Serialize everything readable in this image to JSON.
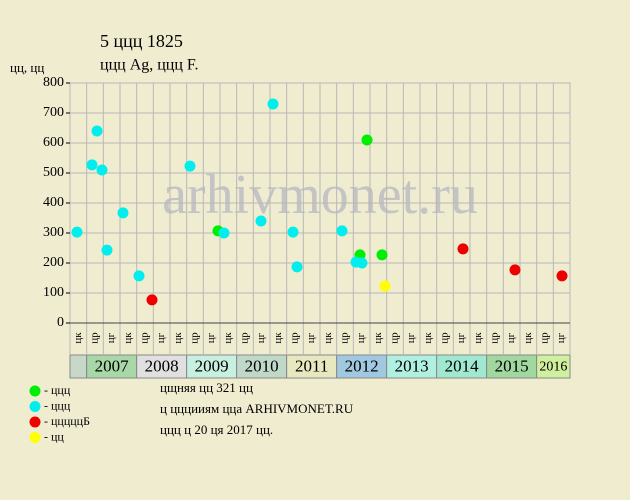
{
  "chart_data": {
    "type": "scatter",
    "title": "5 ццц 1825",
    "subtitle": "ццц Ag, ццц F.",
    "y_label": "цц, цц",
    "watermark": "arhivmonet.ru",
    "ylim": [
      0,
      800
    ],
    "yticks": [
      0,
      100,
      200,
      300,
      400,
      500,
      600,
      700,
      800
    ],
    "xlim": [
      0,
      30
    ],
    "grid": true,
    "column_labels": [
      "цк",
      "цр",
      "цг",
      "цк",
      "цр",
      "цг",
      "цк",
      "цр",
      "цг",
      "цк",
      "цр",
      "цг",
      "цк",
      "цр",
      "цг",
      "цк",
      "цр",
      "цг",
      "цк",
      "цр",
      "цг",
      "цк",
      "цр",
      "цг",
      "цк",
      "цр",
      "цг",
      "цк",
      "цр",
      "цг"
    ],
    "years": [
      null,
      "2007",
      "2008",
      "2009",
      "2010",
      "2011",
      "2012",
      "2013",
      "2014",
      "2015",
      "2016"
    ],
    "year_colors": [
      "#c8d8c8",
      "#a8d8a8",
      "#e0e0e0",
      "#c8f0e0",
      "#c0d8c8",
      "#e8e8c0",
      "#a0c8e0",
      "#b0f0e0",
      "#a0e8d0",
      "#a0d8a0",
      "#d0f0a0"
    ],
    "series": [
      {
        "name": "- ццц",
        "color": "#00ee00",
        "x": [
          8.88,
          17.4,
          17.82,
          18.72
        ],
        "values": [
          307,
          227,
          610,
          227
        ]
      },
      {
        "name": "- ццц",
        "color": "#00eeee",
        "x": [
          0.42,
          1.32,
          1.62,
          1.92,
          2.22,
          3.18,
          4.14,
          7.2,
          9.24,
          11.46,
          12.18,
          13.38,
          13.62,
          16.32,
          17.16,
          17.52
        ],
        "values": [
          303,
          527,
          640,
          510,
          243,
          367,
          157,
          523,
          300,
          340,
          730,
          303,
          187,
          307,
          203,
          200
        ]
      },
      {
        "name": "- цццццБ",
        "color": "#ee0000",
        "x": [
          4.92,
          23.58,
          26.7,
          29.52
        ],
        "values": [
          77,
          247,
          177,
          157
        ]
      },
      {
        "name": "- цц",
        "color": "#ffff00",
        "x": [
          18.9
        ],
        "values": [
          123
        ]
      }
    ],
    "notes": [
      "цщняя цц 321 цц",
      "ц цццииям цца ARHIVMONET.RU",
      "ццц ц 20 ця 2017 цц."
    ]
  }
}
